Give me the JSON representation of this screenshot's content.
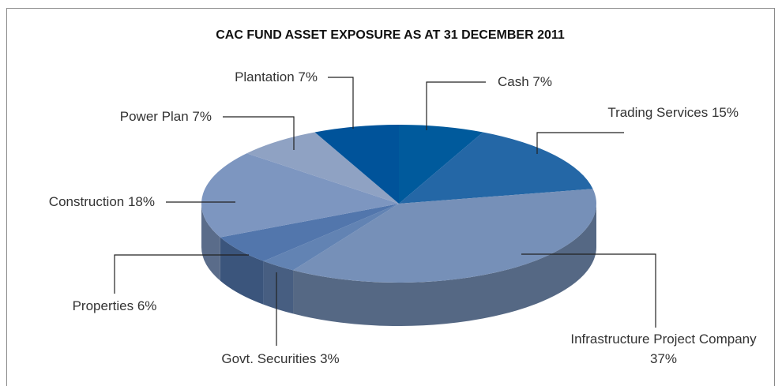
{
  "chart_data": {
    "type": "pie",
    "title": "CAC FUND ASSET EXPOSURE AS AT 31 DECEMBER 2011",
    "categories": [
      "Cash",
      "Trading Services",
      "Infrastructure Project Company",
      "Govt. Securities",
      "Properties",
      "Construction",
      "Power Plan",
      "Plantation"
    ],
    "values": [
      7,
      15,
      37,
      3,
      6,
      18,
      7,
      7
    ],
    "value_labels": [
      "7%",
      "15%",
      "37%",
      "3%",
      "6%",
      "18%",
      "7%",
      "7%"
    ],
    "colors": [
      "#005a9c",
      "#2467a6",
      "#7690b8",
      "#6283b3",
      "#5276ac",
      "#7d96c0",
      "#8fa2c3",
      "#00539a"
    ]
  }
}
